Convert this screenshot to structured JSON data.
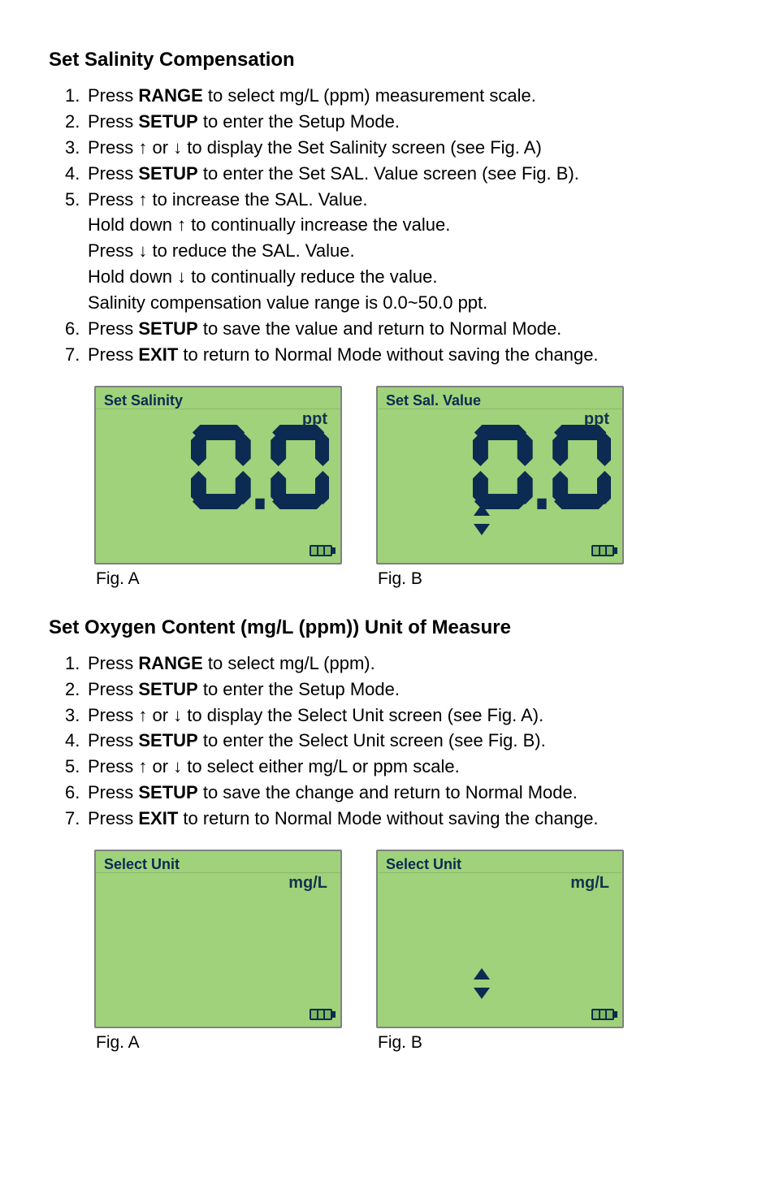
{
  "colors": {
    "lcd_bg": "#9fd27a",
    "lcd_border": "#808080",
    "lcd_text": "#0b2b52",
    "body_text": "#000000",
    "page_bg": "#ffffff"
  },
  "section1": {
    "title": "Set Salinity Compensation",
    "steps": [
      {
        "n": "1.",
        "parts": [
          "Press ",
          {
            "b": "RANGE"
          },
          " to select mg/L (ppm) measurement scale."
        ]
      },
      {
        "n": "2.",
        "parts": [
          "Press ",
          {
            "b": "SETUP"
          },
          " to enter the Setup Mode."
        ]
      },
      {
        "n": "3.",
        "parts": [
          "Press ↑ or ↓ to display the Set Salinity screen (see Fig. A)"
        ]
      },
      {
        "n": "4.",
        "parts": [
          "Press ",
          {
            "b": "SETUP"
          },
          "  to enter the Set SAL. Value screen (see Fig. B)."
        ]
      },
      {
        "n": "5.",
        "parts": [
          "Press ↑ to increase the SAL. Value."
        ],
        "subs": [
          "Hold down ↑ to continually increase the value.",
          "Press ↓ to reduce the SAL. Value.",
          "Hold down ↓ to continually reduce the value.",
          "Salinity compensation value range is 0.0~50.0 ppt."
        ]
      },
      {
        "n": "6.",
        "parts": [
          "Press ",
          {
            "b": "SETUP"
          },
          " to save the value and return to Normal Mode."
        ]
      },
      {
        "n": "7.",
        "parts": [
          "Press ",
          {
            "b": "EXIT"
          },
          " to return to Normal Mode without saving the change."
        ]
      }
    ],
    "figA": {
      "title": "Set Salinity",
      "unit": "ppt",
      "value": "0.0",
      "arrows": false,
      "caption": "Fig. A"
    },
    "figB": {
      "title": "Set Sal. Value",
      "unit": "ppt",
      "value": "0.0",
      "arrows": true,
      "caption": "Fig. B"
    }
  },
  "section2": {
    "title": "Set Oxygen Content (mg/L (ppm)) Unit of Measure",
    "steps": [
      {
        "n": "1.",
        "parts": [
          "Press ",
          {
            "b": "RANGE"
          },
          " to select mg/L (ppm)."
        ]
      },
      {
        "n": "2.",
        "parts": [
          "Press ",
          {
            "b": "SETUP"
          },
          " to enter the Setup Mode."
        ]
      },
      {
        "n": "3.",
        "parts": [
          "Press ↑ or ↓ to display the Select Unit screen (see Fig. A)."
        ]
      },
      {
        "n": "4.",
        "parts": [
          "Press ",
          {
            "b": "SETUP"
          },
          " to enter the Select Unit screen (see Fig. B)."
        ]
      },
      {
        "n": "5.",
        "parts": [
          "Press ↑ or ↓ to select either mg/L or ppm scale."
        ]
      },
      {
        "n": "6.",
        "parts": [
          "Press ",
          {
            "b": "SETUP"
          },
          " to save the change and return to Normal Mode."
        ]
      },
      {
        "n": "7.",
        "parts": [
          "Press ",
          {
            "b": "EXIT"
          },
          " to return to Normal Mode without saving the change."
        ]
      }
    ],
    "figA": {
      "title": "Select Unit",
      "unit": "mg/L",
      "value": "",
      "arrows": false,
      "caption": "Fig. A"
    },
    "figB": {
      "title": "Select Unit",
      "unit": "mg/L",
      "value": "",
      "arrows": true,
      "caption": "Fig. B"
    }
  }
}
